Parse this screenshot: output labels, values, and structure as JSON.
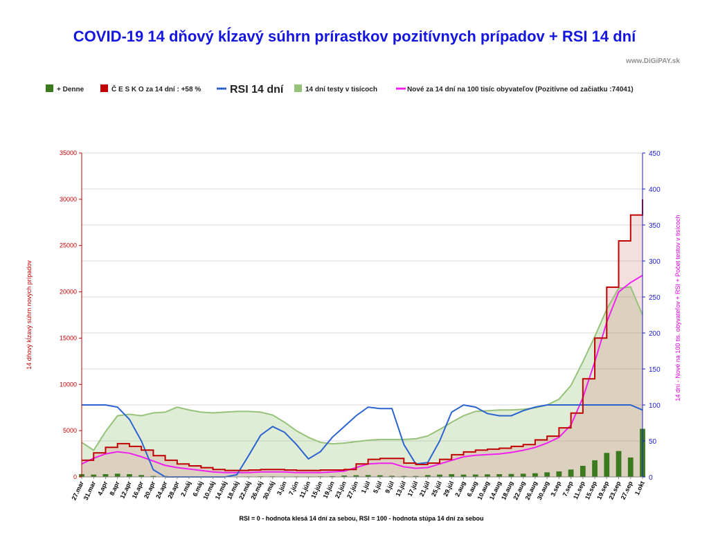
{
  "chart_data": {
    "type": "line",
    "title": "COVID-19 14 dňový kĺzavý súhrn prírastkov pozitívnych prípadov + RSI 14 dní",
    "watermark": "www.DiGiPAY.sk",
    "footnote": "RSI = 0 - hodnota klesá 14 dní za sebou, RSI = 100 - hodnota stúpa 14 dní za sebou",
    "ylabel_left": "14 dňový kĺzavý  súhrn nových prípadov",
    "ylabel_right": "14 dní  - Nové na 100 tis. obyvateľov + RSI + Počet testov v tisícoch",
    "ylim_left": [
      0,
      35000
    ],
    "ylim_right": [
      0,
      450
    ],
    "yticks_left": [
      "0",
      "5000",
      "10000",
      "15000",
      "20000",
      "25000",
      "30000",
      "35000"
    ],
    "yticks_right": [
      "0",
      "50",
      "100",
      "150",
      "200",
      "250",
      "300",
      "350",
      "400",
      "450"
    ],
    "grid": true,
    "legend_position": "top",
    "colors": {
      "title": "#1515e0",
      "left_axis": "#c00000",
      "right_axis": "#1a1ad0",
      "right_label": "#e000e0",
      "denne": "#3b7a1e",
      "cesko": "#c00000",
      "cesko_fill": "rgba(205,110,110,0.22)",
      "rsi": "#2a62d0",
      "testy": "#96c27a",
      "testy_fill": "rgba(160,200,130,0.33)",
      "nove": "#f020f0"
    },
    "legend": [
      {
        "key": "denne",
        "label": "+ Denne"
      },
      {
        "key": "cesko",
        "label": "Č E S K O za 14 dní : +58 %"
      },
      {
        "key": "rsi",
        "label": "RSI 14 dní"
      },
      {
        "key": "testy",
        "label": "14 dní testy v tisícoch"
      },
      {
        "key": "nove",
        "label": "Nové  za 14 dní na 100 tisíc obyvateľov (Pozitívne od začiatku :74041)"
      }
    ],
    "x_categories": [
      "27.mar",
      "31.mar",
      "4.apr",
      "8.apr",
      "12.apr",
      "16.apr",
      "20.apr",
      "24.apr",
      "28.apr",
      "2.máj",
      "6.máj",
      "10.máj",
      "14.máj",
      "18.máj",
      "22.máj",
      "26.máj",
      "30.máj",
      "3.jún",
      "7.jún",
      "11.jún",
      "15.jún",
      "19.jún",
      "23.jún",
      "27.jún",
      "1.júl",
      "5.júl",
      "9.júl",
      "13.júl",
      "17.júl",
      "21.júl",
      "25.júl",
      "29.júl",
      "2.aug",
      "6.aug",
      "10.aug",
      "14.aug",
      "18.aug",
      "22.aug",
      "26.aug",
      "30.aug",
      "3.sep",
      "7.sep",
      "11.sep",
      "15.sep",
      "19.sep",
      "23.sep",
      "27.sep",
      "1.okt"
    ],
    "series": [
      {
        "name": "Č E S K O za 14 dní : +58 %",
        "axis": "left",
        "style": "step",
        "values": [
          1800,
          2600,
          3200,
          3600,
          3300,
          2900,
          2300,
          1800,
          1400,
          1200,
          1000,
          800,
          700,
          700,
          750,
          800,
          800,
          750,
          700,
          700,
          750,
          750,
          800,
          1400,
          1900,
          2000,
          2000,
          1500,
          1350,
          1500,
          1900,
          2400,
          2700,
          2900,
          3000,
          3100,
          3300,
          3500,
          4000,
          4400,
          5300,
          6900,
          10600,
          15000,
          20500,
          25500,
          28300,
          30000
        ]
      },
      {
        "name": "RSI 14 dní",
        "axis": "right",
        "style": "line",
        "values": [
          100,
          100,
          100,
          97,
          80,
          50,
          10,
          0,
          0,
          0,
          0,
          0,
          0,
          3,
          30,
          58,
          70,
          62,
          45,
          25,
          35,
          55,
          70,
          85,
          97,
          95,
          95,
          45,
          18,
          20,
          50,
          90,
          100,
          97,
          88,
          85,
          85,
          92,
          97,
          100,
          100,
          100,
          100,
          100,
          100,
          100,
          100,
          93
        ]
      },
      {
        "name": "14 dní testy v tisícoch",
        "axis": "right",
        "style": "area",
        "values": [
          48,
          37,
          63,
          85,
          87,
          85,
          89,
          90,
          97,
          93,
          90,
          89,
          90,
          91,
          91,
          90,
          86,
          76,
          64,
          55,
          48,
          46,
          47,
          49,
          51,
          52,
          52,
          52,
          53,
          57,
          66,
          76,
          85,
          91,
          92,
          93,
          93,
          94,
          96,
          100,
          108,
          127,
          160,
          195,
          233,
          262,
          264,
          225
        ]
      },
      {
        "name": "Nové  za 14 dní na 100 tisíc obyvateľov (Pozitívne od začiatku :74041)",
        "axis": "right",
        "style": "line",
        "values": [
          18,
          26,
          32,
          35,
          33,
          28,
          22,
          16,
          13,
          11,
          9,
          7,
          6,
          6,
          6,
          7,
          7,
          7,
          6,
          6,
          6,
          7,
          8,
          13,
          18,
          19,
          19,
          14,
          12,
          13,
          18,
          23,
          28,
          30,
          31,
          32,
          34,
          37,
          41,
          47,
          55,
          72,
          110,
          160,
          215,
          257,
          270,
          280
        ]
      },
      {
        "name": "+ Denne",
        "axis": "left",
        "style": "bars",
        "values": [
          300,
          250,
          300,
          350,
          300,
          200,
          100,
          100,
          50,
          50,
          50,
          30,
          30,
          40,
          50,
          60,
          60,
          40,
          50,
          50,
          60,
          80,
          150,
          180,
          200,
          180,
          120,
          100,
          100,
          200,
          250,
          300,
          250,
          260,
          280,
          300,
          320,
          350,
          400,
          500,
          600,
          800,
          1200,
          1800,
          2600,
          2800,
          2100,
          5200
        ]
      }
    ]
  }
}
